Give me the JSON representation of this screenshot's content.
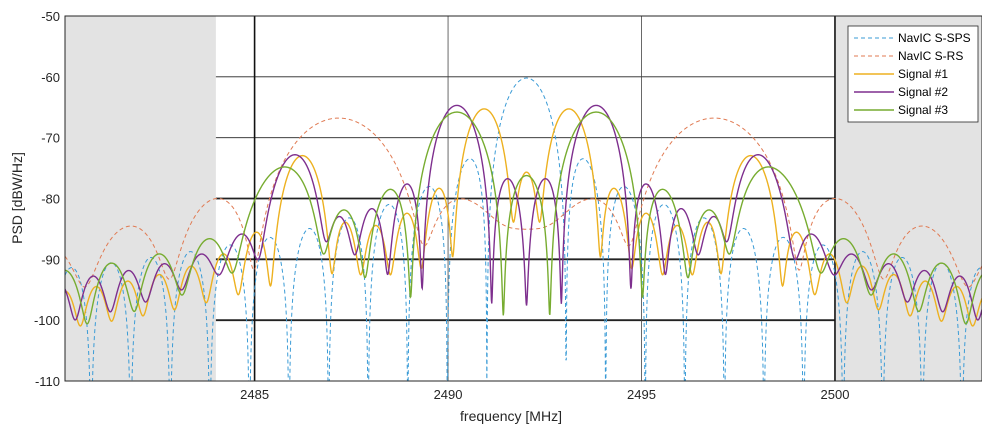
{
  "chart_data": {
    "type": "line",
    "title": "",
    "xlabel": "frequency [MHz]",
    "ylabel": "PSD [dBW/Hz]",
    "xlim": [
      2480.1,
      2503.8
    ],
    "ylim": [
      -110,
      -50
    ],
    "xticks": [
      2485,
      2490,
      2495,
      2500
    ],
    "xtick_labels": [
      "2485",
      "2490",
      "2495",
      "2500"
    ],
    "yticks": [
      -110,
      -100,
      -90,
      -80,
      -70,
      -60,
      -50
    ],
    "ytick_labels": [
      "-110",
      "-100",
      "-90",
      "-80",
      "-70",
      "-60",
      "-50"
    ],
    "grid": true,
    "legend_position": "top-right",
    "shaded_regions": [
      {
        "x0": 2480.1,
        "x1": 2484.0,
        "color": "#e3e3e3"
      },
      {
        "x0": 2500.0,
        "x1": 2503.8,
        "color": "#e3e3e3"
      }
    ],
    "band_edges": [
      2485,
      2500
    ],
    "series": [
      {
        "name": "NavIC S-SPS",
        "color": "#3a9bd6",
        "dashed": true,
        "peak_db": -60.2,
        "center": 2492.028,
        "lobes": [
          {
            "offset": 0,
            "chip_rate": 1.023,
            "weight": 1
          }
        ]
      },
      {
        "name": "NavIC S-RS",
        "color": "#e07a52",
        "dashed": true,
        "peak_db": -66.8,
        "center": 2492.028,
        "lobes": [
          {
            "offset": -4.85,
            "chip_rate": 2.2,
            "weight": 1
          },
          {
            "offset": 4.85,
            "chip_rate": 2.2,
            "weight": 1
          }
        ]
      },
      {
        "name": "Signal #1",
        "color": "#edb120",
        "dashed": false,
        "peak_db": -65.3,
        "center": 2492.028,
        "lobes": [
          {
            "offset": -1.1,
            "chip_rate": 0.8,
            "weight": 1
          },
          {
            "offset": 1.1,
            "chip_rate": 0.8,
            "weight": 1
          },
          {
            "offset": -5.8,
            "chip_rate": 0.8,
            "weight": 0.17
          },
          {
            "offset": 5.8,
            "chip_rate": 0.8,
            "weight": 0.17
          }
        ]
      },
      {
        "name": "Signal #2",
        "color": "#7e2f8e",
        "dashed": false,
        "peak_db": -64.7,
        "center": 2492.028,
        "lobes": [
          {
            "offset": -1.8,
            "chip_rate": 0.9,
            "weight": 1
          },
          {
            "offset": 1.8,
            "chip_rate": 0.9,
            "weight": 1
          },
          {
            "offset": -6.0,
            "chip_rate": 0.9,
            "weight": 0.15
          },
          {
            "offset": 6.0,
            "chip_rate": 0.9,
            "weight": 0.15
          }
        ]
      },
      {
        "name": "Signal #3",
        "color": "#77ac30",
        "dashed": false,
        "peak_db": -65.8,
        "center": 2492.028,
        "lobes": [
          {
            "offset": -1.8,
            "chip_rate": 1.2,
            "weight": 1
          },
          {
            "offset": 1.8,
            "chip_rate": 1.2,
            "weight": 1
          },
          {
            "offset": -6.3,
            "chip_rate": 1.2,
            "weight": 0.12
          },
          {
            "offset": 6.3,
            "chip_rate": 1.2,
            "weight": 0.12
          }
        ]
      }
    ]
  }
}
